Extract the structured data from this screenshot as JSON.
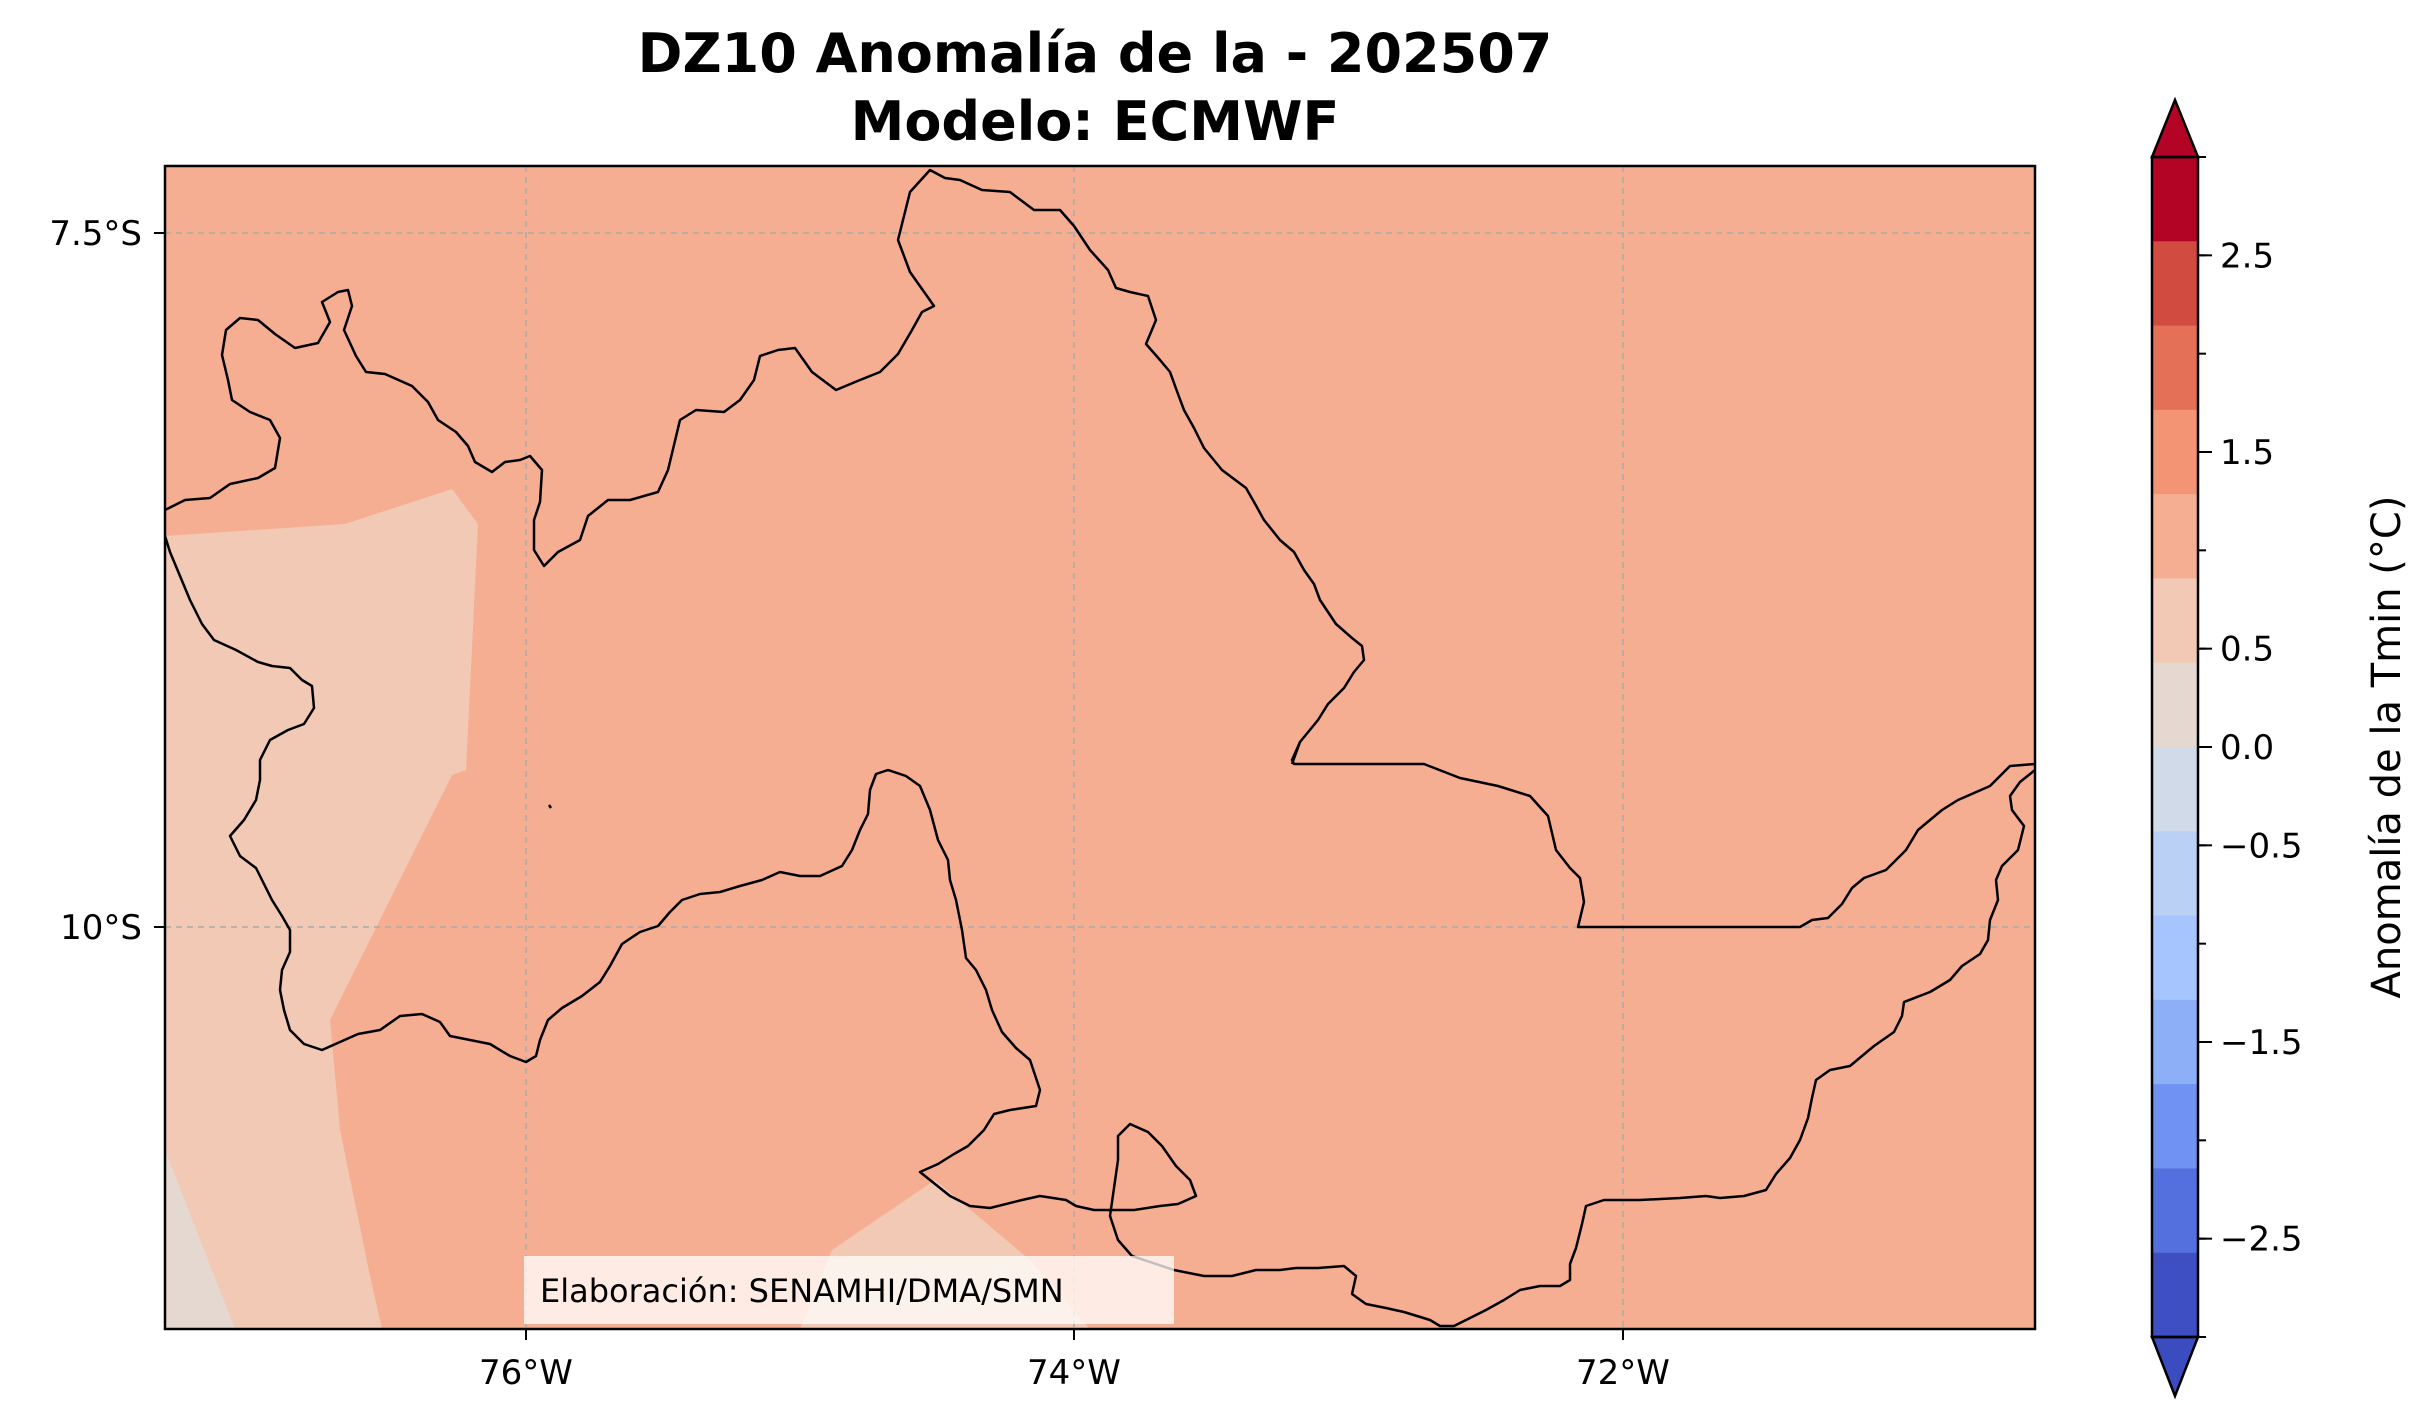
{
  "title": {
    "line1": "DZ10 Anomalía de la - 202507",
    "line2": "Modelo: ECMWF"
  },
  "map": {
    "x_ticks": [
      "76°W",
      "74°W",
      "72°W"
    ],
    "y_ticks": [
      "7.5°S",
      "10°S"
    ],
    "credit": "Elaboración: SENAMHI/DMA/SMN",
    "colors": {
      "main_fill": "#f6ae93",
      "light_fill": "#f2c9b5",
      "neutral_fill": "#e5d8d0",
      "gridline": "#aaaaaa",
      "border": "#000000"
    }
  },
  "colorbar": {
    "label": "Anomalía de la Tmin (°C)",
    "tick_labels": [
      "2.5",
      "1.5",
      "0.5",
      "0.0",
      "−0.5",
      "−1.5",
      "−2.5"
    ],
    "range": [
      -3.0,
      3.0
    ],
    "colors_top_to_bottom": [
      "#b40426",
      "#d24b40",
      "#e57058",
      "#f39475",
      "#f6ae93",
      "#f2c9b5",
      "#e5d8d0",
      "#d1dae9",
      "#bbd0f5",
      "#a6c4fe",
      "#8daff8",
      "#6f92f3",
      "#5470de",
      "#3e4ec3"
    ],
    "extend_max_color": "#b40426",
    "extend_min_color": "#3b4cc0"
  }
}
